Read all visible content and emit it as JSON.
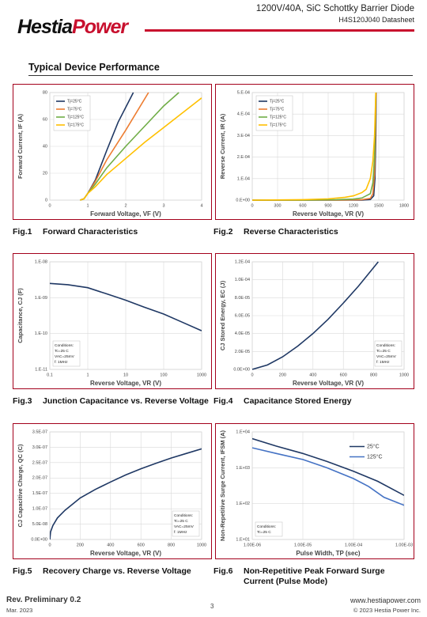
{
  "header": {
    "logo_left": "Hestia",
    "logo_right": "Power",
    "title": "1200V/40A, SiC Schottky Barrier Diode",
    "subtitle": "H4S120J040 Datasheet"
  },
  "section_title": "Typical Device Performance",
  "chart_data": [
    {
      "type": "line",
      "figure": "Fig.1",
      "caption": "Forward Characteristics",
      "x_label": "Forward Voltage, VF (V)",
      "y_label": "Forward Current, IF (A)",
      "xlim": [
        0,
        4
      ],
      "xticks": [
        0,
        1,
        2,
        3,
        4
      ],
      "ylim": [
        0,
        80
      ],
      "yticks": [
        0,
        20,
        40,
        60,
        80
      ],
      "grid": true,
      "legend": "upper left",
      "series": [
        {
          "name": "Tj=25°C",
          "color": "#1f3864",
          "x": [
            0.8,
            0.9,
            1.0,
            1.2,
            1.5,
            1.8,
            2.2
          ],
          "values": [
            0,
            1,
            5,
            15,
            37,
            58,
            80
          ]
        },
        {
          "name": "Tj=75°C",
          "color": "#ed7d31",
          "x": [
            0.8,
            0.9,
            1.0,
            1.2,
            1.5,
            2.0,
            2.6
          ],
          "values": [
            0,
            1,
            5,
            14,
            30,
            52,
            80
          ]
        },
        {
          "name": "Tj=125°C",
          "color": "#70ad47",
          "x": [
            0.8,
            0.9,
            1.0,
            1.2,
            1.5,
            2.0,
            2.5,
            3.0,
            3.4
          ],
          "values": [
            0,
            1,
            5,
            12,
            24,
            40,
            55,
            70,
            80
          ]
        },
        {
          "name": "Tj=175°C",
          "color": "#ffc000",
          "x": [
            0.8,
            0.9,
            1.0,
            1.2,
            1.5,
            2.0,
            2.5,
            3.0,
            3.5,
            4.0
          ],
          "values": [
            0,
            1,
            5,
            10,
            19,
            31,
            43,
            54,
            65,
            76
          ]
        }
      ]
    },
    {
      "type": "line",
      "figure": "Fig.2",
      "caption": "Reverse Characteristics",
      "x_label": "Reverse Voltage, VR (V)",
      "y_label": "Reverse Current, IR (A)",
      "xlim": [
        0,
        1800
      ],
      "xticks": [
        0,
        300,
        600,
        900,
        1200,
        1500,
        1800
      ],
      "ylim": [
        0,
        0.0005
      ],
      "yticks": [
        {
          "value": 0,
          "label": "0.E+00"
        },
        {
          "value": 0.0001,
          "label": "1.E-04"
        },
        {
          "value": 0.0002,
          "label": "2.E-04"
        },
        {
          "value": 0.0003,
          "label": "3.E-04"
        },
        {
          "value": 0.0004,
          "label": "4.E-04"
        },
        {
          "value": 0.0005,
          "label": "5.E-04"
        }
      ],
      "grid": true,
      "legend": "upper left",
      "series": [
        {
          "name": "Tj=25°C",
          "color": "#1f3864",
          "x": [
            0,
            600,
            1000,
            1300,
            1400,
            1440,
            1455,
            1465,
            1470
          ],
          "values": [
            0,
            0,
            0,
            0,
            3e-06,
            2e-05,
            0.0001,
            0.0003,
            0.0005
          ]
        },
        {
          "name": "Tj=75°C",
          "color": "#ed7d31",
          "x": [
            0,
            600,
            1000,
            1300,
            1400,
            1430,
            1450,
            1460,
            1468
          ],
          "values": [
            0,
            0,
            0,
            2e-06,
            8e-06,
            3e-05,
            0.00012,
            0.0003,
            0.0005
          ]
        },
        {
          "name": "Tj=125°C",
          "color": "#70ad47",
          "x": [
            0,
            600,
            1000,
            1200,
            1300,
            1400,
            1430,
            1450,
            1460,
            1465
          ],
          "values": [
            0,
            0,
            2e-06,
            5e-06,
            1e-05,
            3e-05,
            8e-05,
            0.0002,
            0.0004,
            0.0005
          ]
        },
        {
          "name": "Tj=175°C",
          "color": "#ffc000",
          "x": [
            0,
            600,
            900,
            1100,
            1200,
            1300,
            1350,
            1400,
            1430,
            1450,
            1465
          ],
          "values": [
            0,
            2e-06,
            6e-06,
            1.3e-05,
            2e-05,
            3.5e-05,
            5e-05,
            0.0001,
            0.00018,
            0.0003,
            0.0005
          ]
        }
      ]
    },
    {
      "type": "line",
      "figure": "Fig.3",
      "caption": "Junction Capacitance vs. Reverse Voltage",
      "x_label": "Reverse Voltage, VR (V)",
      "y_label": "Capacitance, CJ (F)",
      "xscale": "log",
      "xlim": [
        0.1,
        1000
      ],
      "xticks": [
        0.1,
        1,
        10,
        100,
        1000
      ],
      "yscale": "log",
      "ylim": [
        1e-11,
        1e-08
      ],
      "yticks": [
        {
          "value": 1e-11,
          "label": "1.E-11"
        },
        {
          "value": 1e-10,
          "label": "1.E-10"
        },
        {
          "value": 1e-09,
          "label": "1.E-09"
        },
        {
          "value": 1e-08,
          "label": "1.E-08"
        }
      ],
      "grid": true,
      "notes_loc": "lower left",
      "notes": [
        "Conditions:",
        "Tc=25 C",
        "VAC=25mV",
        "f: 1MHz"
      ],
      "color": "#1f3864",
      "x": [
        0.1,
        0.3,
        1,
        3,
        10,
        30,
        100,
        300,
        1000
      ],
      "values": [
        2.5e-09,
        2.3e-09,
        1.9e-09,
        1.3e-09,
        8.5e-10,
        5.5e-10,
        3.5e-10,
        2.1e-10,
        1.2e-10
      ]
    },
    {
      "type": "line",
      "figure": "Fig.4",
      "caption": "Capacitance Stored Energy",
      "x_label": "Reverse Voltage, VR (V)",
      "y_label": "CJ Stored Energy, EC (J)",
      "xlim": [
        0,
        1000
      ],
      "xticks": [
        0,
        200,
        400,
        600,
        800,
        1000
      ],
      "ylim": [
        0,
        0.00012
      ],
      "yticks": [
        {
          "value": 0,
          "label": "0.0E+00"
        },
        {
          "value": 2e-05,
          "label": "2.0E-05"
        },
        {
          "value": 4e-05,
          "label": "4.0E-05"
        },
        {
          "value": 6e-05,
          "label": "6.0E-05"
        },
        {
          "value": 8e-05,
          "label": "8.0E-05"
        },
        {
          "value": 0.0001,
          "label": "1.0E-04"
        },
        {
          "value": 0.00012,
          "label": "1.2E-04"
        }
      ],
      "grid": true,
      "notes_loc": "lower right",
      "notes": [
        "Conditions:",
        "Tc=25 C",
        "VAC=25mV",
        "f: 1MHz"
      ],
      "color": "#1f3864",
      "x": [
        0,
        100,
        200,
        300,
        400,
        500,
        600,
        700,
        830
      ],
      "values": [
        0,
        5e-06,
        1.4e-05,
        2.6e-05,
        4e-05,
        5.6e-05,
        7.4e-05,
        9.3e-05,
        0.00012
      ]
    },
    {
      "type": "line",
      "figure": "Fig.5",
      "caption": "Recovery Charge vs. Reverse Voltage",
      "x_label": "Reverse Voltage, VR (V)",
      "y_label": "CJ Capacitive Charge, QC (C)",
      "xlim": [
        0,
        1000
      ],
      "xticks": [
        0,
        200,
        400,
        600,
        800,
        1000
      ],
      "ylim": [
        0,
        3.5e-07
      ],
      "yticks": [
        {
          "value": 0,
          "label": "0.0E+00"
        },
        {
          "value": 5e-08,
          "label": "5.0E-08"
        },
        {
          "value": 1e-07,
          "label": "1.0E-07"
        },
        {
          "value": 1.5e-07,
          "label": "1.5E-07"
        },
        {
          "value": 2e-07,
          "label": "2.0E-07"
        },
        {
          "value": 2.5e-07,
          "label": "2.5E-07"
        },
        {
          "value": 3e-07,
          "label": "3.0E-07"
        },
        {
          "value": 3.5e-07,
          "label": "3.5E-07"
        }
      ],
      "grid": true,
      "notes_loc": "lower right",
      "notes": [
        "Conditions:",
        "Tc=25 C",
        "VAC=25mV",
        "f: 1MHz"
      ],
      "color": "#1f3864",
      "x": [
        0,
        5,
        20,
        50,
        100,
        200,
        300,
        400,
        500,
        600,
        700,
        800,
        900,
        1000
      ],
      "values": [
        0,
        2.5e-08,
        4.5e-08,
        7e-08,
        9.5e-08,
        1.35e-07,
        1.63e-07,
        1.87e-07,
        2.1e-07,
        2.3e-07,
        2.48e-07,
        2.65e-07,
        2.8e-07,
        2.95e-07
      ]
    },
    {
      "type": "line",
      "figure": "Fig.6",
      "caption": "Non-Repetitive Peak Forward Surge Current (Pulse Mode)",
      "x_label": "Pulse Width, TP (sec)",
      "y_label": "Non-Repetitive Surge Current, IFSM (A)",
      "xscale": "log",
      "xlim": [
        1e-06,
        0.001
      ],
      "xticks": [
        {
          "value": 1e-06,
          "label": "1.00E-06"
        },
        {
          "value": 1e-05,
          "label": "1.00E-05"
        },
        {
          "value": 0.0001,
          "label": "1.00E-04"
        },
        {
          "value": 0.001,
          "label": "1.00E-03"
        }
      ],
      "yscale": "log",
      "ylim": [
        10,
        10000
      ],
      "yticks": [
        {
          "value": 10,
          "label": "1.E+01"
        },
        {
          "value": 100,
          "label": "1.E+02"
        },
        {
          "value": 1000,
          "label": "1.E+03"
        },
        {
          "value": 10000,
          "label": "1.E+04"
        }
      ],
      "grid": true,
      "legend": "upper right",
      "notes_loc": "lower left",
      "notes": [
        "Conditions:",
        "Tc=25 C"
      ],
      "series": [
        {
          "name": "25°C",
          "color": "#1f3864",
          "x": [
            1e-06,
            3e-06,
            1e-05,
            3e-05,
            0.0001,
            0.0003,
            0.001
          ],
          "values": [
            6500,
            4000,
            2500,
            1500,
            800,
            420,
            170
          ]
        },
        {
          "name": "125°C",
          "color": "#4472c4",
          "x": [
            1e-06,
            3e-06,
            1e-05,
            3e-05,
            0.0001,
            0.0002,
            0.0004,
            0.001
          ],
          "values": [
            3600,
            2500,
            1700,
            1000,
            500,
            300,
            150,
            90
          ]
        }
      ]
    }
  ],
  "footer": {
    "revision": "Rev. Preliminary 0.2",
    "date": "Mar. 2023",
    "page": "3",
    "website": "www.hestiapower.com",
    "copyright": "© 2023 Hestia Power Inc."
  }
}
